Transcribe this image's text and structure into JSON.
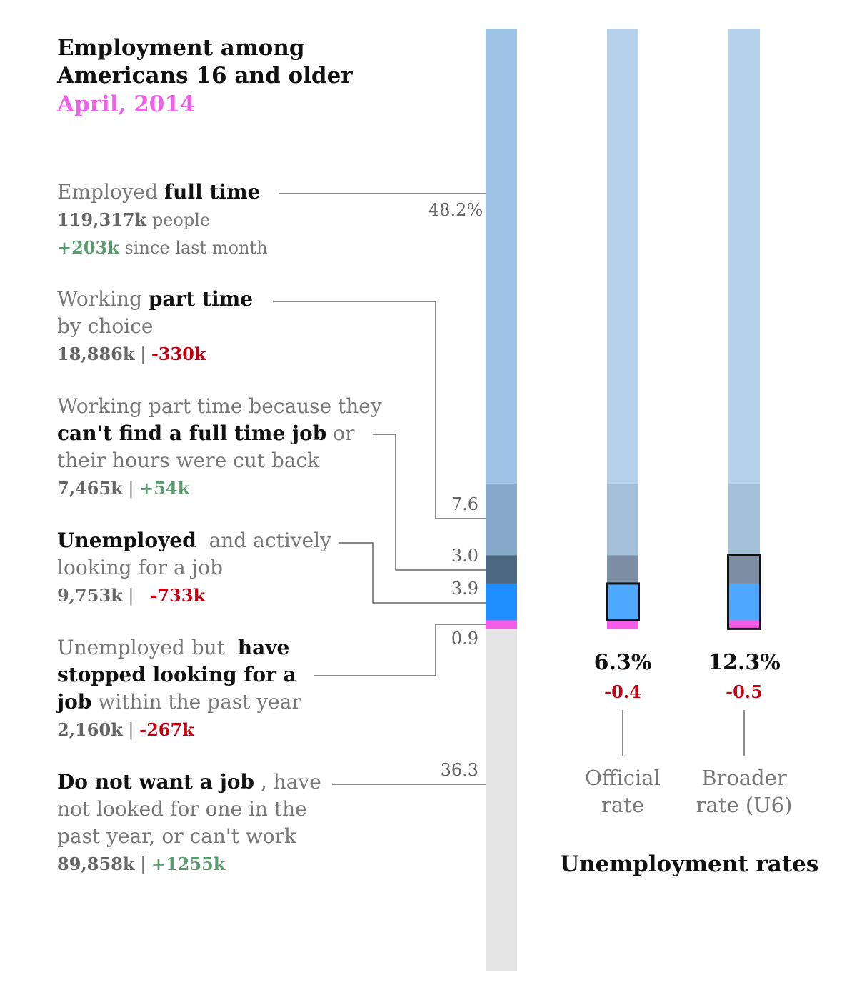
{
  "title": "Employment among Americans 16 and older",
  "title_lines": [
    "Employment among",
    "Americans 16 and older"
  ],
  "subtitle": "April, 2014",
  "categories": {
    "full_time": {
      "pre": "Employed ",
      "bold": "full time",
      "count": "119,317k",
      "count_suffix": " people",
      "change": "+203k",
      "change_suffix": " since last month",
      "pct_label": "48.2%"
    },
    "part_time_choice": {
      "pre": "Working ",
      "bold": "part time",
      "line2": "by choice",
      "count": "18,886k",
      "sep": " | ",
      "change": "-330k",
      "pct_label": "7.6"
    },
    "part_time_economic": {
      "line1": "Working part time because they",
      "bold": "can't find a full time job",
      "post": " or",
      "line3": "their hours were cut back",
      "count": "7,465k",
      "sep": " | ",
      "change": "+54k",
      "pct_label": "3.0"
    },
    "unemployed": {
      "bold": "Unemployed",
      "post": "  and actively",
      "line2": "looking for a job",
      "count": "9,753k",
      "sep": " |   ",
      "change": "-733k",
      "pct_label": "3.9"
    },
    "stopped_looking": {
      "pre": "Unemployed but  ",
      "bold1": "have",
      "bold2": "stopped looking for a",
      "bold3": "job",
      "post": " within the past year",
      "count": "2,160k",
      "sep": " | ",
      "change": "-267k",
      "pct_label": "0.9"
    },
    "not_want": {
      "bold": "Do not want a job",
      "post": " , have",
      "line2": "not looked for one in the",
      "line3": "past year, or can't work",
      "count": "89,858k",
      "sep": " | ",
      "change": "+1255k",
      "pct_label": "36.3"
    }
  },
  "rates": {
    "official": {
      "value": "6.3%",
      "change": "-0.4",
      "label_lines": [
        "Official",
        "rate"
      ]
    },
    "broader": {
      "value": "12.3%",
      "change": "-0.5",
      "label_lines": [
        "Broader",
        "rate (U6)"
      ]
    },
    "title": "Unemployment rates"
  },
  "chart_data": {
    "type": "bar",
    "title": "Employment among Americans 16 and older",
    "subtitle": "April, 2014",
    "categories": [
      "Employed full time",
      "Working part time by choice",
      "Working part time because they can't find a full time job",
      "Unemployed and actively looking for a job",
      "Unemployed but have stopped looking for a job",
      "Do not want a job"
    ],
    "values": [
      48.2,
      7.6,
      3.0,
      3.9,
      0.9,
      36.3
    ],
    "counts_k": [
      119317,
      18886,
      7465,
      9753,
      2160,
      89858
    ],
    "changes_k": [
      203,
      -330,
      54,
      -733,
      -267,
      1255
    ],
    "stacked": true,
    "colors": [
      "#9fc3e4",
      "#86a9ca",
      "#4d6781",
      "#1f8cff",
      "#f55ce8",
      "#e5e5e5"
    ],
    "rate_bar_colors": [
      "#b7d3ec",
      "#a4bfd8",
      "#7c8fa4",
      "#4ea8ff",
      "#f55ce8"
    ],
    "rates": [
      {
        "name": "Official rate",
        "value": 6.3,
        "change": -0.4,
        "highlight": [
          "Unemployed and actively looking for a job"
        ]
      },
      {
        "name": "Broader rate (U6)",
        "value": 12.3,
        "change": -0.5,
        "highlight": [
          "Working part time because they can't find a full time job",
          "Unemployed and actively looking for a job",
          "Unemployed but have stopped looking for a job"
        ]
      }
    ]
  }
}
